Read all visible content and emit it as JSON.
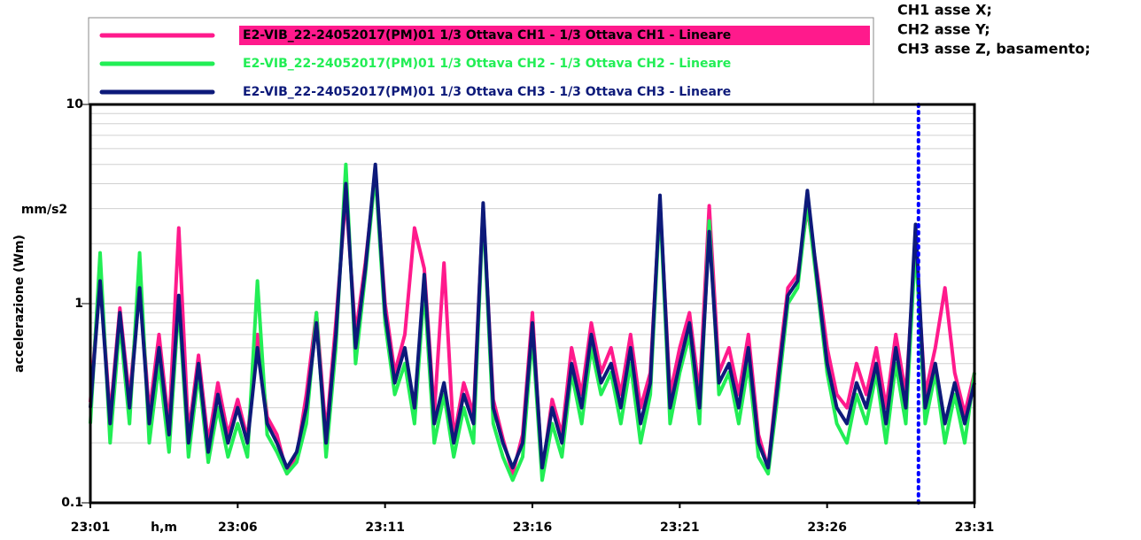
{
  "chart_data": {
    "type": "line",
    "x_label": "h,m",
    "y_label": "accelerazione (Wm)",
    "y_unit": "mm/s2",
    "annotations": [
      "CH1 asse X;",
      "CH2 asse Y;",
      "CH3 asse Z, basamento;"
    ],
    "log_y": true,
    "grid": true,
    "xlim": [
      0,
      30
    ],
    "xticks": [
      {
        "value": 0,
        "label": "23:01"
      },
      {
        "value": 5,
        "label": "23:06"
      },
      {
        "value": 10,
        "label": "23:11"
      },
      {
        "value": 15,
        "label": "23:16"
      },
      {
        "value": 20,
        "label": "23:21"
      },
      {
        "value": 25,
        "label": "23:26"
      },
      {
        "value": 30,
        "label": "23:31"
      }
    ],
    "ylim": [
      0.1,
      10
    ],
    "yticks": [
      {
        "value": 0.1,
        "label": "0.1"
      },
      1,
      10
    ],
    "yminor": [
      0.2,
      0.3,
      0.4,
      0.5,
      0.6,
      0.7,
      0.8,
      0.9,
      2,
      3,
      4,
      5,
      6,
      7,
      8,
      9
    ],
    "marker_line": {
      "x": 28.1,
      "color": "#0000ff"
    },
    "x": [
      0,
      0.33,
      0.67,
      1,
      1.33,
      1.67,
      2,
      2.33,
      2.67,
      3,
      3.33,
      3.67,
      4,
      4.33,
      4.67,
      5,
      5.33,
      5.67,
      6,
      6.33,
      6.67,
      7,
      7.33,
      7.67,
      8,
      8.33,
      8.67,
      9,
      9.33,
      9.67,
      10,
      10.33,
      10.67,
      11,
      11.33,
      11.67,
      12,
      12.33,
      12.67,
      13,
      13.33,
      13.67,
      14,
      14.33,
      14.67,
      15,
      15.33,
      15.67,
      16,
      16.33,
      16.67,
      17,
      17.33,
      17.67,
      18,
      18.33,
      18.67,
      19,
      19.33,
      19.67,
      20,
      20.33,
      20.67,
      21,
      21.33,
      21.67,
      22,
      22.33,
      22.67,
      23,
      23.33,
      23.67,
      24,
      24.33,
      24.67,
      25,
      25.33,
      25.67,
      26,
      26.33,
      26.67,
      27,
      27.33,
      27.67,
      28,
      28.33,
      28.67,
      29,
      29.33,
      29.67,
      30
    ],
    "series": [
      {
        "name": "E2-VIB_22-24052017(PM)01 1/3 Ottava CH1 - 1/3 Ottava CH1 - Lineare",
        "color": "#ff1a8c",
        "highlight": true,
        "values": [
          0.32,
          1.4,
          0.27,
          0.95,
          0.33,
          1.3,
          0.28,
          0.7,
          0.24,
          2.4,
          0.22,
          0.55,
          0.2,
          0.4,
          0.22,
          0.33,
          0.21,
          0.7,
          0.27,
          0.22,
          0.14,
          0.17,
          0.35,
          0.9,
          0.22,
          0.8,
          3.5,
          0.7,
          1.6,
          4.5,
          1.0,
          0.45,
          0.7,
          2.4,
          1.5,
          0.28,
          1.6,
          0.21,
          0.4,
          0.28,
          3.0,
          0.33,
          0.21,
          0.14,
          0.22,
          0.9,
          0.14,
          0.33,
          0.22,
          0.6,
          0.35,
          0.8,
          0.45,
          0.6,
          0.35,
          0.7,
          0.3,
          0.45,
          3.2,
          0.35,
          0.6,
          0.9,
          0.35,
          3.1,
          0.45,
          0.6,
          0.35,
          0.7,
          0.22,
          0.15,
          0.45,
          1.2,
          1.4,
          3.0,
          1.4,
          0.6,
          0.35,
          0.3,
          0.5,
          0.35,
          0.6,
          0.3,
          0.7,
          0.35,
          2.0,
          0.35,
          0.6,
          1.2,
          0.45,
          0.28,
          0.45
        ]
      },
      {
        "name": "E2-VIB_22-24052017(PM)01 1/3 Ottava CH2 - 1/3 Ottava CH2 - Lineare",
        "color": "#22ee55",
        "values": [
          0.25,
          1.8,
          0.2,
          0.8,
          0.25,
          1.8,
          0.2,
          0.5,
          0.18,
          1.0,
          0.17,
          0.45,
          0.16,
          0.3,
          0.17,
          0.25,
          0.17,
          1.3,
          0.22,
          0.18,
          0.14,
          0.16,
          0.25,
          0.9,
          0.17,
          0.6,
          5.0,
          0.5,
          1.4,
          4.5,
          0.8,
          0.35,
          0.5,
          0.25,
          1.2,
          0.2,
          0.35,
          0.17,
          0.3,
          0.2,
          3.0,
          0.25,
          0.17,
          0.13,
          0.17,
          0.7,
          0.13,
          0.25,
          0.17,
          0.45,
          0.25,
          0.6,
          0.35,
          0.45,
          0.25,
          0.5,
          0.2,
          0.35,
          3.2,
          0.25,
          0.45,
          0.7,
          0.25,
          2.6,
          0.35,
          0.45,
          0.25,
          0.5,
          0.17,
          0.14,
          0.35,
          1.0,
          1.2,
          3.2,
          1.2,
          0.45,
          0.25,
          0.2,
          0.35,
          0.25,
          0.45,
          0.2,
          0.5,
          0.25,
          2.0,
          0.25,
          0.45,
          0.2,
          0.35,
          0.2,
          0.45
        ]
      },
      {
        "name": "E2-VIB_22-24052017(PM)01 1/3 Ottava CH3 - 1/3 Ottava CH3 - Lineare",
        "color": "#0d1a7a",
        "values": [
          0.3,
          1.3,
          0.25,
          0.9,
          0.3,
          1.2,
          0.25,
          0.6,
          0.22,
          1.1,
          0.2,
          0.5,
          0.18,
          0.35,
          0.2,
          0.3,
          0.2,
          0.6,
          0.25,
          0.2,
          0.15,
          0.18,
          0.3,
          0.8,
          0.2,
          0.7,
          4.0,
          0.6,
          1.5,
          5.0,
          0.9,
          0.4,
          0.6,
          0.3,
          1.4,
          0.25,
          0.4,
          0.2,
          0.35,
          0.25,
          3.2,
          0.3,
          0.2,
          0.15,
          0.2,
          0.8,
          0.15,
          0.3,
          0.2,
          0.5,
          0.3,
          0.7,
          0.4,
          0.5,
          0.3,
          0.6,
          0.25,
          0.4,
          3.5,
          0.3,
          0.5,
          0.8,
          0.3,
          2.3,
          0.4,
          0.5,
          0.3,
          0.6,
          0.2,
          0.15,
          0.4,
          1.1,
          1.3,
          3.7,
          1.3,
          0.5,
          0.3,
          0.25,
          0.4,
          0.3,
          0.5,
          0.25,
          0.6,
          0.3,
          2.5,
          0.3,
          0.5,
          0.25,
          0.4,
          0.25,
          0.4
        ]
      }
    ]
  }
}
